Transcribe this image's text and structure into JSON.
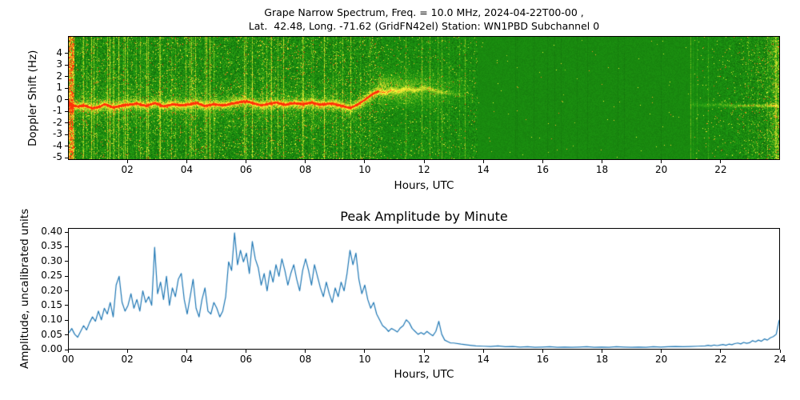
{
  "figure": {
    "title_line1": "Grape Narrow Spectrum, Freq. = 10.0 MHz, 2024-04-22T00-00 ,",
    "title_line2": "Lat.  42.48, Long. -71.62 (GridFN42el) Station: WN1PBD Subchannel 0"
  },
  "chart_data": [
    {
      "type": "heatmap",
      "name": "doppler-spectrogram",
      "title_line1": "Grape Narrow Spectrum, Freq. = 10.0 MHz, 2024-04-22T00-00 ,",
      "title_line2": "Lat.  42.48, Long. -71.62 (GridFN42el) Station: WN1PBD Subchannel 0",
      "xlabel": "Hours, UTC",
      "ylabel": "Doppler Shift (Hz)",
      "xlim": [
        0,
        24
      ],
      "ylim": [
        -5.2,
        5.5
      ],
      "xtick_values": [
        2,
        4,
        6,
        8,
        10,
        12,
        14,
        16,
        18,
        20,
        22
      ],
      "xtick_labels": [
        "02",
        "04",
        "06",
        "08",
        "10",
        "12",
        "14",
        "16",
        "18",
        "20",
        "22"
      ],
      "ytick_values": [
        4,
        3,
        2,
        1,
        0,
        -1,
        -2,
        -3,
        -4,
        -5
      ],
      "ytick_labels": [
        "4",
        "3",
        "2",
        "1",
        "0",
        "-1",
        "-2",
        "-3",
        "-4",
        "-5"
      ],
      "colormap": {
        "background_green": "#1c8a10",
        "speckle_yellow": "#ffff3c",
        "carrier_red": "#ff3c00"
      },
      "carrier_trace": [
        [
          0,
          -0.45
        ],
        [
          0.3,
          -0.6
        ],
        [
          0.5,
          -0.5
        ],
        [
          0.8,
          -0.75
        ],
        [
          1.0,
          -0.65
        ],
        [
          1.2,
          -0.4
        ],
        [
          1.5,
          -0.7
        ],
        [
          1.8,
          -0.5
        ],
        [
          2.0,
          -0.45
        ],
        [
          2.3,
          -0.35
        ],
        [
          2.6,
          -0.55
        ],
        [
          2.9,
          -0.3
        ],
        [
          3.2,
          -0.6
        ],
        [
          3.5,
          -0.4
        ],
        [
          3.8,
          -0.5
        ],
        [
          4.0,
          -0.45
        ],
        [
          4.3,
          -0.3
        ],
        [
          4.6,
          -0.55
        ],
        [
          4.9,
          -0.4
        ],
        [
          5.2,
          -0.5
        ],
        [
          5.5,
          -0.35
        ],
        [
          5.8,
          -0.2
        ],
        [
          6.0,
          -0.15
        ],
        [
          6.2,
          -0.3
        ],
        [
          6.5,
          -0.5
        ],
        [
          6.8,
          -0.35
        ],
        [
          7.0,
          -0.25
        ],
        [
          7.3,
          -0.45
        ],
        [
          7.6,
          -0.3
        ],
        [
          7.9,
          -0.4
        ],
        [
          8.2,
          -0.25
        ],
        [
          8.5,
          -0.45
        ],
        [
          8.8,
          -0.35
        ],
        [
          9.0,
          -0.4
        ],
        [
          9.3,
          -0.6
        ],
        [
          9.5,
          -0.75
        ],
        [
          9.7,
          -0.5
        ],
        [
          9.9,
          -0.2
        ],
        [
          10.1,
          0.2
        ],
        [
          10.3,
          0.55
        ],
        [
          10.5,
          0.75
        ],
        [
          10.7,
          0.6
        ],
        [
          10.9,
          0.85
        ],
        [
          11.1,
          0.7
        ],
        [
          11.4,
          0.95
        ],
        [
          11.7,
          0.8
        ],
        [
          12.0,
          1.05
        ],
        [
          12.3,
          0.85
        ],
        [
          12.6,
          0.65
        ],
        [
          13.0,
          0.5
        ],
        [
          13.4,
          0.4
        ]
      ],
      "late_trace": [
        [
          21.0,
          -0.45
        ],
        [
          21.5,
          -0.5
        ],
        [
          22.0,
          -0.45
        ],
        [
          22.5,
          -0.55
        ],
        [
          23.0,
          -0.5
        ],
        [
          23.5,
          -0.55
        ],
        [
          24.0,
          -0.5
        ]
      ],
      "activity_regions": [
        {
          "hours": [
            0,
            10.5
          ],
          "description": "high noise with yellow speckle, vertical interference streaks, strong red carrier trace wandering between 0 and -1 Hz"
        },
        {
          "hours": [
            10.5,
            13.8
          ],
          "description": "diffuse spread carrier rising to +0.5..+2 Hz, fading yellow cloud"
        },
        {
          "hours": [
            13.8,
            21
          ],
          "description": "quiet uniform green background with faint vertical lines"
        },
        {
          "hours": [
            21,
            24
          ],
          "description": "faint carrier line near -0.5 Hz, broadband noise increasing toward 24h"
        }
      ]
    },
    {
      "type": "line",
      "name": "peak-amplitude-by-minute",
      "title": "Peak Amplitude by Minute",
      "xlabel": "Hours, UTC",
      "ylabel": "Amplitude, uncalibrated units",
      "xlim": [
        0,
        24
      ],
      "ylim": [
        0,
        0.4
      ],
      "xtick_values": [
        0,
        2,
        4,
        6,
        8,
        10,
        12,
        14,
        16,
        18,
        20,
        22,
        24
      ],
      "xtick_labels": [
        "00",
        "02",
        "04",
        "06",
        "08",
        "10",
        "12",
        "14",
        "16",
        "18",
        "20",
        "22",
        "24"
      ],
      "ytick_values": [
        0,
        0.05,
        0.1,
        0.15,
        0.2,
        0.25,
        0.3,
        0.35,
        0.4
      ],
      "ytick_labels": [
        "0.00",
        "0.05",
        "0.10",
        "0.15",
        "0.20",
        "0.25",
        "0.30",
        "0.35",
        "0.40"
      ],
      "line_color": "#1f77b4",
      "series": [
        {
          "name": "peak_amplitude",
          "points": [
            [
              0.0,
              0.055
            ],
            [
              0.1,
              0.07
            ],
            [
              0.2,
              0.05
            ],
            [
              0.3,
              0.04
            ],
            [
              0.4,
              0.06
            ],
            [
              0.5,
              0.08
            ],
            [
              0.6,
              0.065
            ],
            [
              0.7,
              0.09
            ],
            [
              0.8,
              0.11
            ],
            [
              0.9,
              0.095
            ],
            [
              1.0,
              0.13
            ],
            [
              1.1,
              0.1
            ],
            [
              1.2,
              0.14
            ],
            [
              1.3,
              0.12
            ],
            [
              1.4,
              0.16
            ],
            [
              1.5,
              0.11
            ],
            [
              1.6,
              0.22
            ],
            [
              1.7,
              0.25
            ],
            [
              1.8,
              0.16
            ],
            [
              1.9,
              0.13
            ],
            [
              2.0,
              0.15
            ],
            [
              2.1,
              0.19
            ],
            [
              2.2,
              0.14
            ],
            [
              2.3,
              0.17
            ],
            [
              2.4,
              0.13
            ],
            [
              2.5,
              0.2
            ],
            [
              2.6,
              0.16
            ],
            [
              2.7,
              0.18
            ],
            [
              2.8,
              0.15
            ],
            [
              2.9,
              0.35
            ],
            [
              3.0,
              0.19
            ],
            [
              3.1,
              0.23
            ],
            [
              3.2,
              0.17
            ],
            [
              3.3,
              0.25
            ],
            [
              3.4,
              0.15
            ],
            [
              3.5,
              0.21
            ],
            [
              3.6,
              0.18
            ],
            [
              3.7,
              0.24
            ],
            [
              3.8,
              0.26
            ],
            [
              3.9,
              0.17
            ],
            [
              4.0,
              0.12
            ],
            [
              4.1,
              0.18
            ],
            [
              4.2,
              0.24
            ],
            [
              4.3,
              0.14
            ],
            [
              4.4,
              0.11
            ],
            [
              4.5,
              0.17
            ],
            [
              4.6,
              0.21
            ],
            [
              4.7,
              0.13
            ],
            [
              4.8,
              0.12
            ],
            [
              4.9,
              0.16
            ],
            [
              5.0,
              0.14
            ],
            [
              5.1,
              0.11
            ],
            [
              5.2,
              0.13
            ],
            [
              5.3,
              0.18
            ],
            [
              5.4,
              0.3
            ],
            [
              5.5,
              0.27
            ],
            [
              5.6,
              0.4
            ],
            [
              5.7,
              0.29
            ],
            [
              5.8,
              0.34
            ],
            [
              5.9,
              0.3
            ],
            [
              6.0,
              0.33
            ],
            [
              6.1,
              0.26
            ],
            [
              6.2,
              0.37
            ],
            [
              6.3,
              0.31
            ],
            [
              6.4,
              0.28
            ],
            [
              6.5,
              0.22
            ],
            [
              6.6,
              0.26
            ],
            [
              6.7,
              0.2
            ],
            [
              6.8,
              0.27
            ],
            [
              6.9,
              0.23
            ],
            [
              7.0,
              0.29
            ],
            [
              7.1,
              0.25
            ],
            [
              7.2,
              0.31
            ],
            [
              7.3,
              0.27
            ],
            [
              7.4,
              0.22
            ],
            [
              7.5,
              0.26
            ],
            [
              7.6,
              0.29
            ],
            [
              7.7,
              0.24
            ],
            [
              7.8,
              0.2
            ],
            [
              7.9,
              0.27
            ],
            [
              8.0,
              0.31
            ],
            [
              8.1,
              0.27
            ],
            [
              8.2,
              0.22
            ],
            [
              8.3,
              0.29
            ],
            [
              8.4,
              0.25
            ],
            [
              8.5,
              0.21
            ],
            [
              8.6,
              0.18
            ],
            [
              8.7,
              0.23
            ],
            [
              8.8,
              0.19
            ],
            [
              8.9,
              0.16
            ],
            [
              9.0,
              0.21
            ],
            [
              9.1,
              0.18
            ],
            [
              9.2,
              0.23
            ],
            [
              9.3,
              0.2
            ],
            [
              9.4,
              0.26
            ],
            [
              9.5,
              0.34
            ],
            [
              9.6,
              0.29
            ],
            [
              9.7,
              0.33
            ],
            [
              9.8,
              0.24
            ],
            [
              9.9,
              0.19
            ],
            [
              10.0,
              0.22
            ],
            [
              10.1,
              0.17
            ],
            [
              10.2,
              0.14
            ],
            [
              10.3,
              0.16
            ],
            [
              10.4,
              0.12
            ],
            [
              10.5,
              0.1
            ],
            [
              10.6,
              0.08
            ],
            [
              10.7,
              0.072
            ],
            [
              10.8,
              0.06
            ],
            [
              10.9,
              0.07
            ],
            [
              11.0,
              0.065
            ],
            [
              11.1,
              0.058
            ],
            [
              11.2,
              0.072
            ],
            [
              11.3,
              0.08
            ],
            [
              11.4,
              0.1
            ],
            [
              11.5,
              0.09
            ],
            [
              11.6,
              0.07
            ],
            [
              11.7,
              0.06
            ],
            [
              11.8,
              0.05
            ],
            [
              11.9,
              0.056
            ],
            [
              12.0,
              0.05
            ],
            [
              12.1,
              0.06
            ],
            [
              12.2,
              0.052
            ],
            [
              12.3,
              0.045
            ],
            [
              12.4,
              0.06
            ],
            [
              12.5,
              0.095
            ],
            [
              12.6,
              0.05
            ],
            [
              12.7,
              0.03
            ],
            [
              12.8,
              0.025
            ],
            [
              12.9,
              0.02
            ],
            [
              13.0,
              0.02
            ],
            [
              13.25,
              0.016
            ],
            [
              13.5,
              0.013
            ],
            [
              13.75,
              0.01
            ],
            [
              14.0,
              0.009
            ],
            [
              14.25,
              0.008
            ],
            [
              14.5,
              0.01
            ],
            [
              14.75,
              0.007
            ],
            [
              15.0,
              0.008
            ],
            [
              15.25,
              0.006
            ],
            [
              15.5,
              0.007
            ],
            [
              15.75,
              0.005
            ],
            [
              16.0,
              0.006
            ],
            [
              16.25,
              0.007
            ],
            [
              16.5,
              0.005
            ],
            [
              16.75,
              0.006
            ],
            [
              17.0,
              0.005
            ],
            [
              17.25,
              0.006
            ],
            [
              17.5,
              0.007
            ],
            [
              17.75,
              0.005
            ],
            [
              18.0,
              0.006
            ],
            [
              18.25,
              0.005
            ],
            [
              18.5,
              0.007
            ],
            [
              18.75,
              0.006
            ],
            [
              19.0,
              0.005
            ],
            [
              19.25,
              0.006
            ],
            [
              19.5,
              0.005
            ],
            [
              19.75,
              0.007
            ],
            [
              20.0,
              0.006
            ],
            [
              20.25,
              0.007
            ],
            [
              20.5,
              0.008
            ],
            [
              20.75,
              0.007
            ],
            [
              21.0,
              0.008
            ],
            [
              21.25,
              0.009
            ],
            [
              21.5,
              0.01
            ],
            [
              21.6,
              0.012
            ],
            [
              21.7,
              0.01
            ],
            [
              21.8,
              0.013
            ],
            [
              21.9,
              0.011
            ],
            [
              22.0,
              0.013
            ],
            [
              22.1,
              0.015
            ],
            [
              22.2,
              0.012
            ],
            [
              22.3,
              0.016
            ],
            [
              22.4,
              0.014
            ],
            [
              22.5,
              0.018
            ],
            [
              22.6,
              0.02
            ],
            [
              22.7,
              0.017
            ],
            [
              22.8,
              0.022
            ],
            [
              22.9,
              0.019
            ],
            [
              23.0,
              0.021
            ],
            [
              23.1,
              0.028
            ],
            [
              23.2,
              0.024
            ],
            [
              23.3,
              0.03
            ],
            [
              23.4,
              0.026
            ],
            [
              23.5,
              0.034
            ],
            [
              23.6,
              0.03
            ],
            [
              23.7,
              0.038
            ],
            [
              23.8,
              0.042
            ],
            [
              23.9,
              0.05
            ],
            [
              24.0,
              0.1
            ]
          ]
        }
      ]
    }
  ]
}
